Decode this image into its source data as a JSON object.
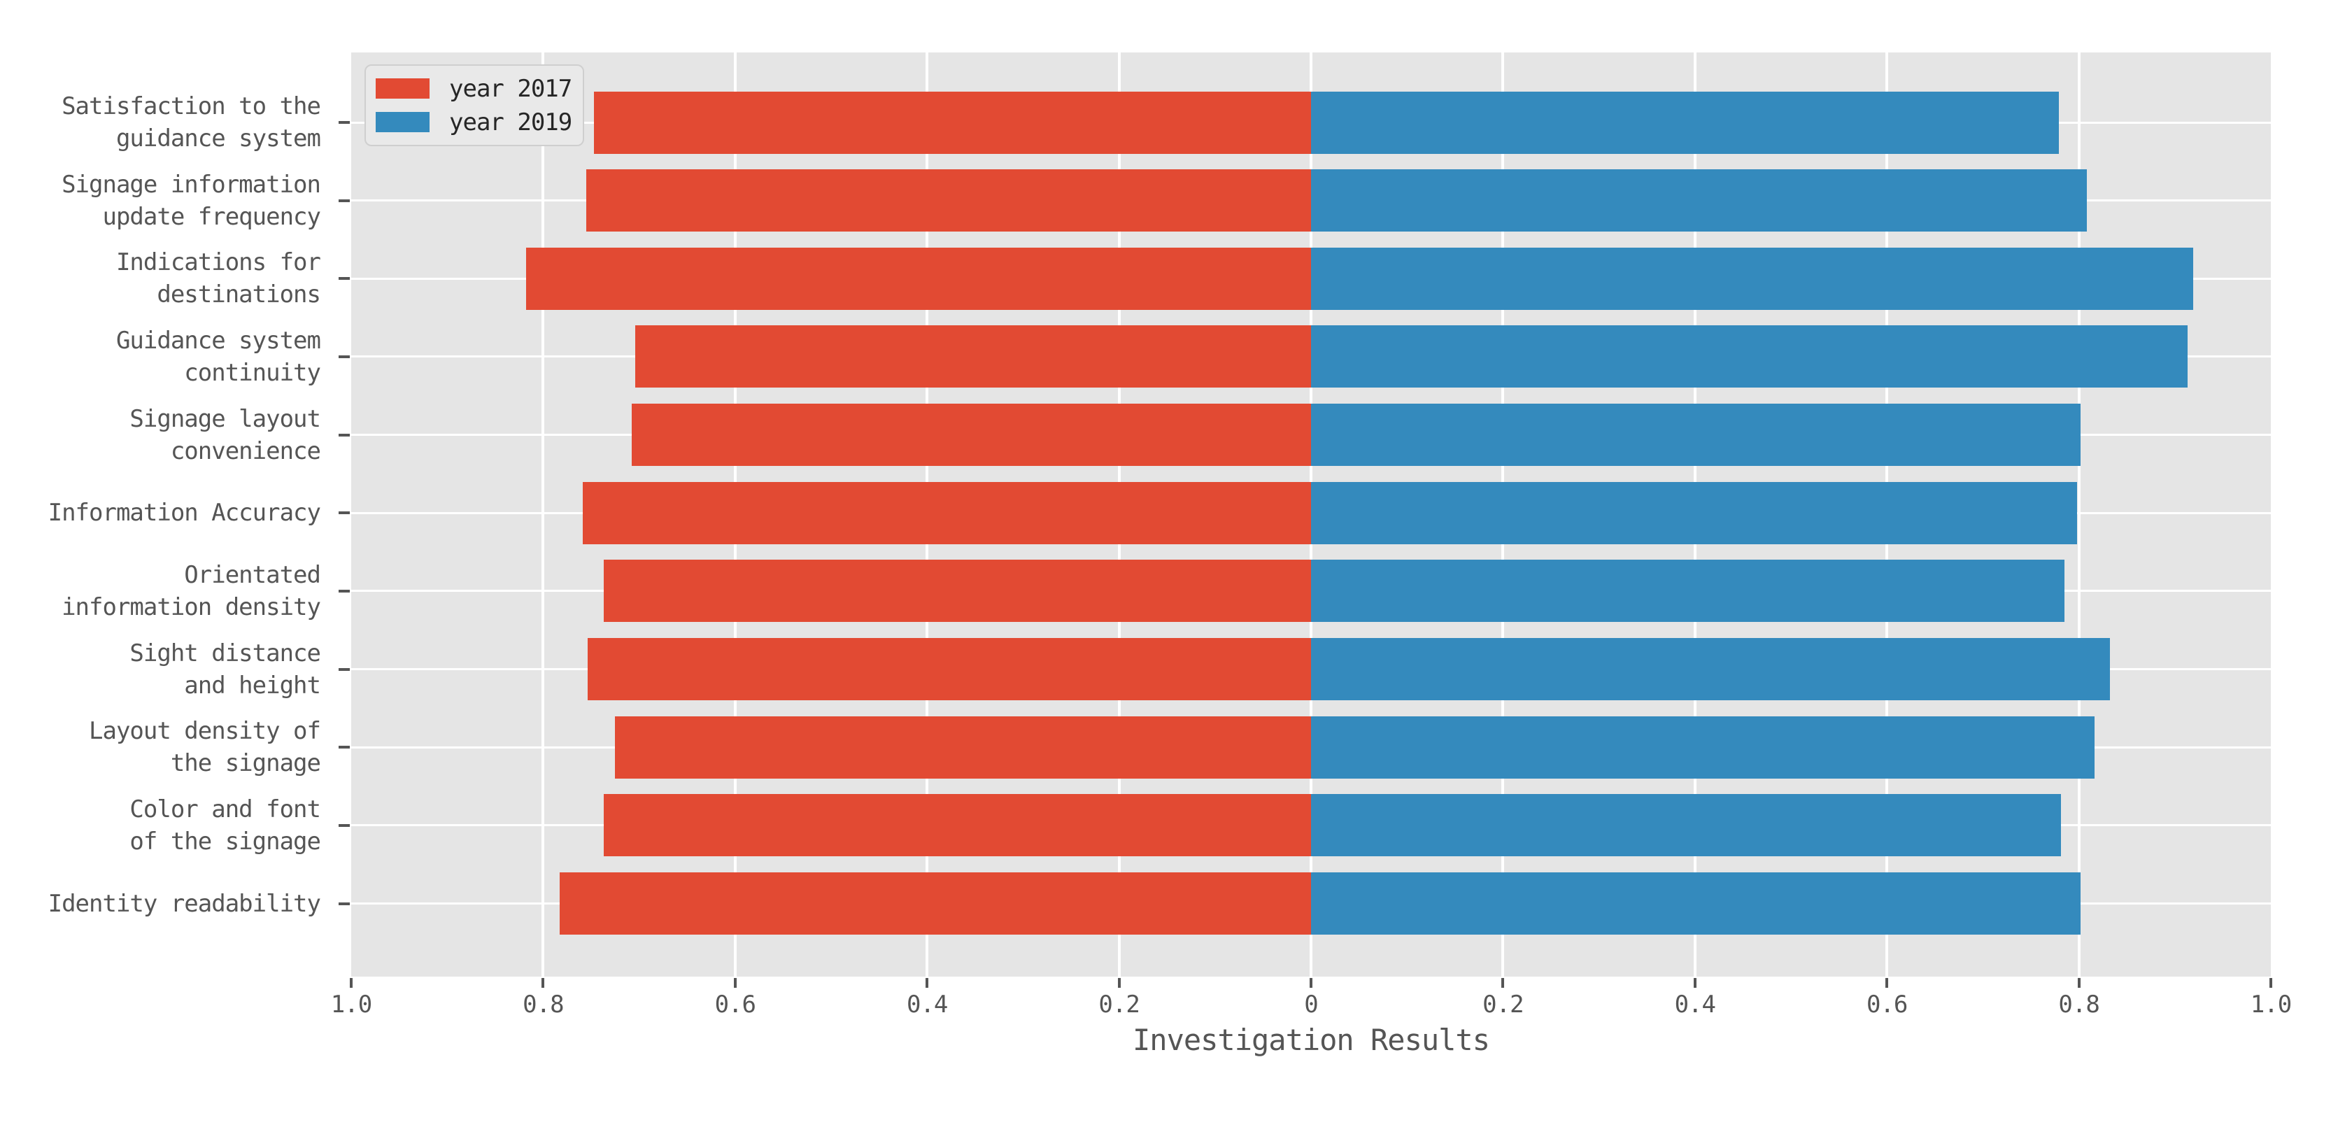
{
  "chart_data": {
    "type": "bar",
    "orientation": "diverging-horizontal",
    "title": "",
    "xlabel": "Investigation Results",
    "ylabel": "",
    "categories": [
      "Satisfaction to the\nguidance system",
      "Signage information\nupdate frequency",
      "Indications for\ndestinations",
      "Guidance system\ncontinuity",
      "Signage layout\nconvenience",
      "Information Accuracy",
      "Orientated\ninformation density",
      "Sight distance\nand height",
      "Layout density of\nthe signage",
      "Color and font\nof the signage",
      "Identity readability"
    ],
    "series": [
      {
        "name": "year 2017",
        "side": "left",
        "color": "#E24A33",
        "values": [
          0.747,
          0.755,
          0.818,
          0.704,
          0.708,
          0.759,
          0.737,
          0.754,
          0.725,
          0.737,
          0.783
        ]
      },
      {
        "name": "year 2019",
        "side": "right",
        "color": "#348ABD",
        "values": [
          0.779,
          0.808,
          0.919,
          0.913,
          0.802,
          0.798,
          0.785,
          0.832,
          0.816,
          0.781,
          0.802
        ]
      }
    ],
    "x_axis": {
      "xlim": [
        -1.0,
        1.0
      ],
      "tick_values": [
        -1.0,
        -0.8,
        -0.6,
        -0.4,
        -0.2,
        0,
        0.2,
        0.4,
        0.6,
        0.8,
        1.0
      ],
      "tick_labels": [
        "1.0",
        "0.8",
        "0.6",
        "0.4",
        "0.2",
        "0",
        "0.2",
        "0.4",
        "0.6",
        "0.8",
        "1.0"
      ]
    },
    "legend": {
      "position": "upper-left",
      "entries": [
        "year 2017",
        "year 2019"
      ]
    },
    "grid": "on",
    "style": {
      "figure_bg": "#FFFFFF",
      "plot_bg": "#E5E5E5",
      "grid_color": "#FFFFFF",
      "text_color": "#555555",
      "legend_text_color": "#262626",
      "legend_bg": "#E9E9E9",
      "legend_border": "#CFCFCF",
      "tick_color": "#555555"
    }
  }
}
